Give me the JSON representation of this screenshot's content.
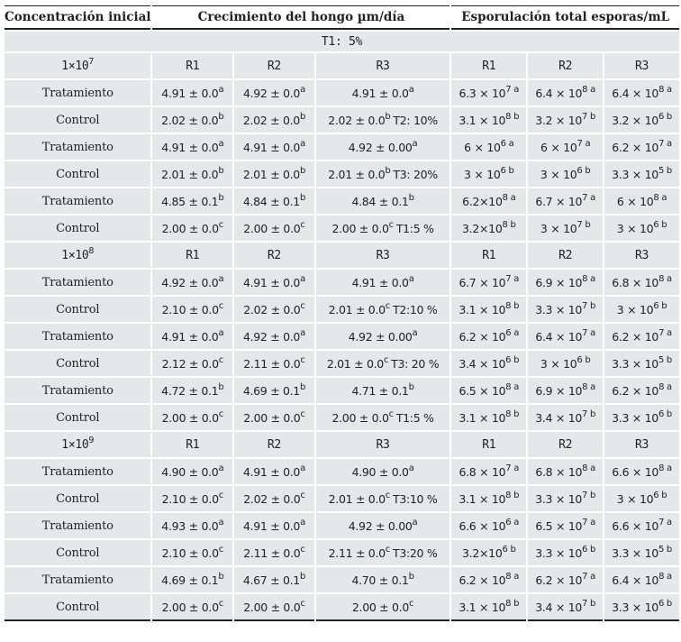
{
  "header": {
    "col_concentration": "Concentración inicial",
    "col_growth": "Crecimiento del hongo µm/día",
    "col_sporulation": "Esporulación total esporas/mL"
  },
  "group_label": "T1: 5%",
  "replicate_labels": [
    "R1",
    "R2",
    "R3"
  ],
  "blocks": [
    {
      "concentration_base": "1×10",
      "concentration_exp": "7",
      "rows": [
        {
          "label": "Tratamiento",
          "growth": [
            {
              "v": "4.91 ± 0.0",
              "s": "a"
            },
            {
              "v": "4.92 ± 0.0",
              "s": "a"
            },
            {
              "v": "4.91 ± 0.0",
              "s": "a",
              "t": ""
            }
          ],
          "spor": [
            {
              "m": "6.3 × 10",
              "e": "7",
              "s": "a"
            },
            {
              "m": "6.4 × 10",
              "e": "8",
              "s": "a"
            },
            {
              "m": "6.4 × 10",
              "e": "8",
              "s": "a"
            }
          ]
        },
        {
          "label": "Control",
          "growth": [
            {
              "v": "2.02 ± 0.0",
              "s": "b"
            },
            {
              "v": "2.02 ± 0.0",
              "s": "b"
            },
            {
              "v": "2.02 ± 0.0",
              "s": "b",
              "t": "T2: 10%"
            }
          ],
          "spor": [
            {
              "m": "3.1 × 10",
              "e": "8",
              "s": "b"
            },
            {
              "m": "3.2 × 10",
              "e": "7",
              "s": "b"
            },
            {
              "m": "3.2 × 10",
              "e": "6",
              "s": "b"
            }
          ]
        },
        {
          "label": "Tratamiento",
          "growth": [
            {
              "v": "4.91 ± 0.0",
              "s": "a"
            },
            {
              "v": "4.91 ± 0.0",
              "s": "a"
            },
            {
              "v": "4.92 ± 0.00",
              "s": "a",
              "t": ""
            }
          ],
          "spor": [
            {
              "m": "6 × 10",
              "e": "6",
              "s": "a"
            },
            {
              "m": "6 × 10",
              "e": "7",
              "s": "a"
            },
            {
              "m": "6.2 × 10",
              "e": "7",
              "s": "a"
            }
          ]
        },
        {
          "label": "Control",
          "growth": [
            {
              "v": "2.01 ± 0.0",
              "s": "b"
            },
            {
              "v": "2.01 ± 0.0",
              "s": "b"
            },
            {
              "v": "2.01 ± 0.0",
              "s": "b",
              "t": "T3: 20%"
            }
          ],
          "spor": [
            {
              "m": "3 × 10",
              "e": "6",
              "s": "b"
            },
            {
              "m": "3 × 10",
              "e": "6",
              "s": "b"
            },
            {
              "m": "3.3 × 10",
              "e": "5",
              "s": "b"
            }
          ]
        },
        {
          "label": "Tratamiento",
          "growth": [
            {
              "v": "4.85 ± 0.1",
              "s": "b"
            },
            {
              "v": "4.84 ± 0.1",
              "s": "b"
            },
            {
              "v": "4.84 ± 0.1",
              "s": "b",
              "t": ""
            }
          ],
          "spor": [
            {
              "m": "6.2×10",
              "e": "8",
              "s": "a"
            },
            {
              "m": "6.7 × 10",
              "e": "7",
              "s": "a"
            },
            {
              "m": "6 × 10",
              "e": "8",
              "s": "a"
            }
          ]
        },
        {
          "label": "Control",
          "growth": [
            {
              "v": "2.00 ± 0.0",
              "s": "c"
            },
            {
              "v": "2.00 ± 0.0",
              "s": "c"
            },
            {
              "v": "2.00 ± 0.0",
              "s": "c",
              "t": "T1:5 %"
            }
          ],
          "spor": [
            {
              "m": "3.2×10",
              "e": "8",
              "s": "b"
            },
            {
              "m": "3 × 10",
              "e": "7",
              "s": "b"
            },
            {
              "m": "3 × 10",
              "e": "6",
              "s": "b"
            }
          ]
        }
      ]
    },
    {
      "concentration_base": "1×10",
      "concentration_exp": "8",
      "rows": [
        {
          "label": "Tratamiento",
          "growth": [
            {
              "v": "4.92 ± 0.0",
              "s": "a"
            },
            {
              "v": "4.91 ± 0.0",
              "s": "a"
            },
            {
              "v": "4.91 ± 0.0",
              "s": "a",
              "t": ""
            }
          ],
          "spor": [
            {
              "m": "6.7 × 10",
              "e": "7",
              "s": "a"
            },
            {
              "m": "6.9 × 10",
              "e": "8",
              "s": "a"
            },
            {
              "m": "6.8 × 10",
              "e": "8",
              "s": "a"
            }
          ]
        },
        {
          "label": "Control",
          "growth": [
            {
              "v": "2.10 ± 0.0",
              "s": "c"
            },
            {
              "v": "2.02 ± 0.0",
              "s": "c"
            },
            {
              "v": "2.01 ± 0.0",
              "s": "c",
              "t": "T2:10 %"
            }
          ],
          "spor": [
            {
              "m": "3.1 × 10",
              "e": "8",
              "s": "b"
            },
            {
              "m": "3.3 × 10",
              "e": "7",
              "s": "b"
            },
            {
              "m": "3 × 10",
              "e": "6",
              "s": "b"
            }
          ]
        },
        {
          "label": "Tratamiento",
          "growth": [
            {
              "v": "4.91 ± 0.0",
              "s": "a"
            },
            {
              "v": "4.92 ± 0.0",
              "s": "a"
            },
            {
              "v": "4.92 ± 0.00",
              "s": "a",
              "t": ""
            }
          ],
          "spor": [
            {
              "m": "6.2 × 10",
              "e": "6",
              "s": "a"
            },
            {
              "m": "6.4 × 10",
              "e": "7",
              "s": "a"
            },
            {
              "m": "6.2 × 10",
              "e": "7",
              "s": "a"
            }
          ]
        },
        {
          "label": "Control",
          "growth": [
            {
              "v": "2.12 ± 0.0",
              "s": "c"
            },
            {
              "v": "2.11 ± 0.0",
              "s": "c"
            },
            {
              "v": "2.01 ± 0.0",
              "s": "c",
              "t": "T3: 20 %"
            }
          ],
          "spor": [
            {
              "m": "3.4 × 10",
              "e": "6",
              "s": "b"
            },
            {
              "m": "3 × 10",
              "e": "6",
              "s": "b"
            },
            {
              "m": "3.3 × 10",
              "e": "5",
              "s": "b"
            }
          ]
        },
        {
          "label": "Tratamiento",
          "growth": [
            {
              "v": "4.72 ± 0.1",
              "s": "b"
            },
            {
              "v": "4.69 ± 0.1",
              "s": "b"
            },
            {
              "v": "4.71 ± 0.1",
              "s": "b",
              "t": ""
            }
          ],
          "spor": [
            {
              "m": "6.5 × 10",
              "e": "8",
              "s": "a"
            },
            {
              "m": "6.9 × 10",
              "e": "8",
              "s": "a"
            },
            {
              "m": "6.2 × 10",
              "e": "8",
              "s": "a"
            }
          ]
        },
        {
          "label": "Control",
          "growth": [
            {
              "v": "2.00 ± 0.0",
              "s": "c"
            },
            {
              "v": "2.00 ± 0.0",
              "s": "c"
            },
            {
              "v": "2.00 ± 0.0",
              "s": "c",
              "t": "T1:5 %"
            }
          ],
          "spor": [
            {
              "m": "3.1 × 10",
              "e": "8",
              "s": "b"
            },
            {
              "m": "3.4 × 10",
              "e": "7",
              "s": "b"
            },
            {
              "m": "3.3 × 10",
              "e": "6",
              "s": "b"
            }
          ]
        }
      ]
    },
    {
      "concentration_base": "1×10",
      "concentration_exp": "9",
      "rows": [
        {
          "label": "Tratamiento",
          "growth": [
            {
              "v": "4.90 ± 0.0",
              "s": "a"
            },
            {
              "v": "4.91 ± 0.0",
              "s": "a"
            },
            {
              "v": "4.90 ± 0.0",
              "s": "a",
              "t": ""
            }
          ],
          "spor": [
            {
              "m": "6.8 × 10",
              "e": "7",
              "s": "a"
            },
            {
              "m": "6.8 × 10",
              "e": "8",
              "s": "a"
            },
            {
              "m": "6.6 × 10",
              "e": "8",
              "s": "a"
            }
          ]
        },
        {
          "label": "Control",
          "growth": [
            {
              "v": "2.10 ± 0.0",
              "s": "c"
            },
            {
              "v": "2.02 ± 0.0",
              "s": "c"
            },
            {
              "v": "2.01 ± 0.0",
              "s": "c",
              "t": "T3:10 %"
            }
          ],
          "spor": [
            {
              "m": "3.1 × 10",
              "e": "8",
              "s": "b"
            },
            {
              "m": "3.3 × 10",
              "e": "7",
              "s": "b"
            },
            {
              "m": "3 × 10",
              "e": "6",
              "s": "b"
            }
          ]
        },
        {
          "label": "Tratamiento",
          "growth": [
            {
              "v": "4.93 ± 0.0",
              "s": "a"
            },
            {
              "v": "4.91 ± 0.0",
              "s": "a"
            },
            {
              "v": "4.92 ± 0.00",
              "s": "a",
              "t": ""
            }
          ],
          "spor": [
            {
              "m": "6.6 × 10",
              "e": "6",
              "s": "a"
            },
            {
              "m": "6.5 × 10",
              "e": "7",
              "s": "a"
            },
            {
              "m": "6.6 × 10",
              "e": "7",
              "s": "a"
            }
          ]
        },
        {
          "label": "Control",
          "growth": [
            {
              "v": "2.10 ± 0.0",
              "s": "c"
            },
            {
              "v": "2.11 ± 0.0",
              "s": "c"
            },
            {
              "v": "2.11 ± 0.0",
              "s": "c",
              "t": "T3:20 %"
            }
          ],
          "spor": [
            {
              "m": "3.2×10",
              "e": "6",
              "s": "b"
            },
            {
              "m": "3.3 × 10",
              "e": "6",
              "s": "b"
            },
            {
              "m": "3.3 × 10",
              "e": "5",
              "s": "b"
            }
          ]
        },
        {
          "label": "Tratamiento",
          "growth": [
            {
              "v": "4.69 ± 0.1",
              "s": "b"
            },
            {
              "v": "4.67 ± 0.1",
              "s": "b"
            },
            {
              "v": "4.70 ± 0.1",
              "s": "b",
              "t": ""
            }
          ],
          "spor": [
            {
              "m": "6.2 × 10",
              "e": "8",
              "s": "a"
            },
            {
              "m": "6.2 × 10",
              "e": "7",
              "s": "a"
            },
            {
              "m": "6.4 × 10",
              "e": "8",
              "s": "a"
            }
          ]
        },
        {
          "label": "Control",
          "growth": [
            {
              "v": "2.00 ± 0.0",
              "s": "c"
            },
            {
              "v": "2.00 ± 0.0",
              "s": "c"
            },
            {
              "v": "2.00 ± 0.0",
              "s": "c",
              "t": ""
            }
          ],
          "spor": [
            {
              "m": "3.1 × 10",
              "e": "8",
              "s": "b"
            },
            {
              "m": "3.4 × 10",
              "e": "7",
              "s": "b"
            },
            {
              "m": "3.3 × 10",
              "e": "6",
              "s": "b"
            }
          ]
        }
      ]
    }
  ]
}
